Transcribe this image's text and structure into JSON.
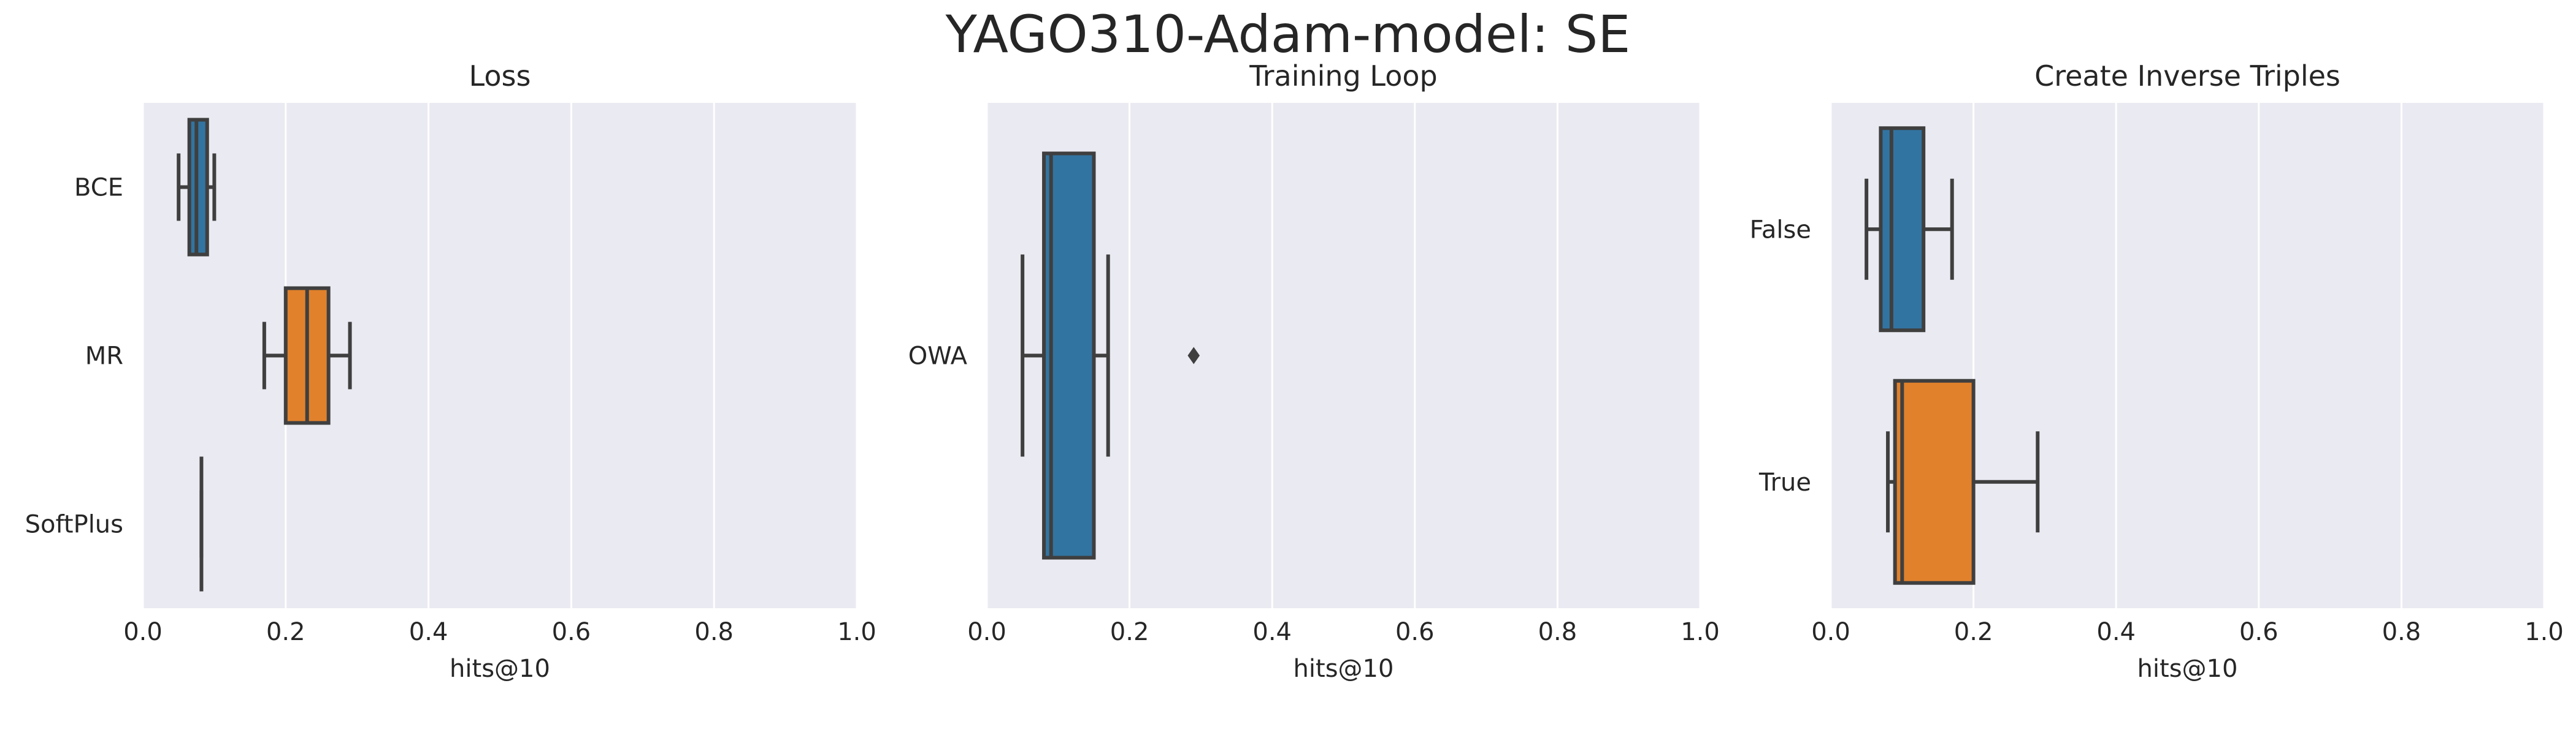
{
  "title": "YAGO310-Adam-model: SE",
  "colors": {
    "background": "#EAEAF2",
    "grid": "#FFFFFF",
    "line": "#3F3F3F",
    "text": "#262626",
    "series": [
      "#3274A1",
      "#E1812C"
    ]
  },
  "chart_data": [
    {
      "type": "boxplot",
      "orientation": "horizontal",
      "title": "Loss",
      "xlabel": "hits@10",
      "ylabel": "",
      "xlim": [
        0,
        1
      ],
      "xticks": [
        "0.0",
        "0.2",
        "0.4",
        "0.6",
        "0.8",
        "1.0"
      ],
      "grid": true,
      "categories": [
        "BCE",
        "MR",
        "SoftPlus"
      ],
      "boxes": [
        {
          "label": "BCE",
          "min": 0.05,
          "q1": 0.065,
          "median": 0.075,
          "q3": 0.09,
          "max": 0.1,
          "outliers": [],
          "color": "#3274A1"
        },
        {
          "label": "MR",
          "min": 0.17,
          "q1": 0.2,
          "median": 0.23,
          "q3": 0.26,
          "max": 0.29,
          "outliers": [],
          "color": "#E1812C"
        },
        {
          "label": "SoftPlus",
          "min": 0.082,
          "q1": 0.082,
          "median": 0.082,
          "q3": 0.082,
          "max": 0.082,
          "outliers": [],
          "color": "#3A923A"
        }
      ]
    },
    {
      "type": "boxplot",
      "orientation": "horizontal",
      "title": "Training Loop",
      "xlabel": "hits@10",
      "ylabel": "",
      "xlim": [
        0,
        1
      ],
      "xticks": [
        "0.0",
        "0.2",
        "0.4",
        "0.6",
        "0.8",
        "1.0"
      ],
      "grid": true,
      "categories": [
        "OWA"
      ],
      "boxes": [
        {
          "label": "OWA",
          "min": 0.05,
          "q1": 0.08,
          "median": 0.09,
          "q3": 0.15,
          "max": 0.17,
          "outliers": [
            0.29
          ],
          "color": "#3274A1"
        }
      ]
    },
    {
      "type": "boxplot",
      "orientation": "horizontal",
      "title": "Create Inverse Triples",
      "xlabel": "hits@10",
      "ylabel": "",
      "xlim": [
        0,
        1
      ],
      "xticks": [
        "0.0",
        "0.2",
        "0.4",
        "0.6",
        "0.8",
        "1.0"
      ],
      "grid": true,
      "categories": [
        "False",
        "True"
      ],
      "boxes": [
        {
          "label": "False",
          "min": 0.05,
          "q1": 0.07,
          "median": 0.085,
          "q3": 0.13,
          "max": 0.17,
          "outliers": [],
          "color": "#3274A1"
        },
        {
          "label": "True",
          "min": 0.08,
          "q1": 0.09,
          "median": 0.1,
          "q3": 0.2,
          "max": 0.29,
          "outliers": [],
          "color": "#E1812C"
        }
      ]
    }
  ]
}
